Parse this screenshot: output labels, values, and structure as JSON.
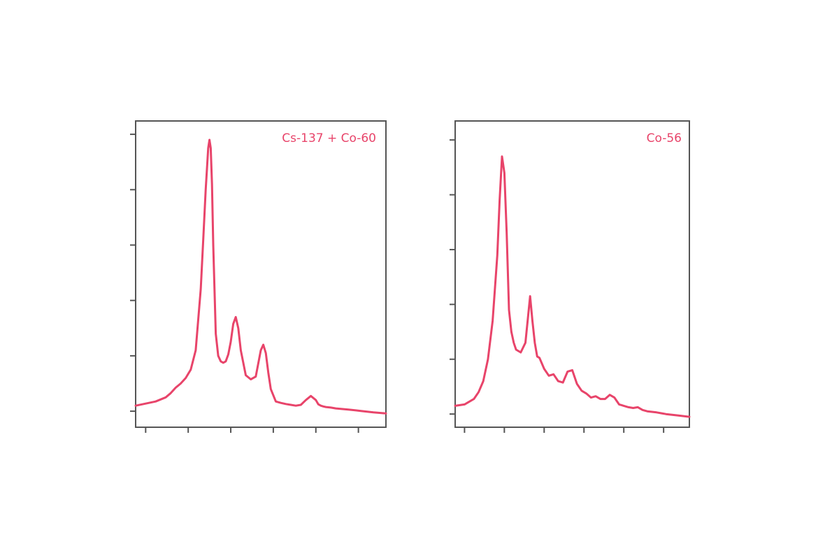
{
  "accent_color": "#e8446a",
  "chart_data": [
    {
      "type": "line",
      "title": "",
      "xlabel": "",
      "ylabel": "",
      "xlim": [
        0,
        100
      ],
      "ylim": [
        0,
        100
      ],
      "grid": false,
      "legend_position": "top-right",
      "x_ticks": [
        4,
        21,
        38,
        55,
        72,
        89
      ],
      "y_ticks": [
        2,
        22,
        42,
        62,
        82,
        102
      ],
      "series": [
        {
          "name": "Cs-137 + Co-60",
          "color": "#e8446a",
          "x": [
            0,
            8,
            12,
            14,
            16,
            18,
            20,
            22,
            24,
            26,
            27,
            28,
            29,
            29.5,
            30,
            30.5,
            31,
            32,
            33,
            34,
            35,
            36,
            37,
            38,
            39,
            40,
            41,
            42,
            44,
            46,
            48,
            50,
            51,
            52,
            53,
            54,
            56,
            58,
            60,
            62,
            64,
            66,
            68,
            70,
            72,
            73,
            74,
            75,
            76,
            78,
            80,
            85,
            90,
            95,
            100
          ],
          "y": [
            4,
            5.5,
            7,
            8.5,
            10.5,
            12,
            14,
            17,
            24,
            46,
            64,
            82,
            97,
            100,
            97,
            84,
            62,
            30,
            22,
            20,
            19.5,
            20,
            22.5,
            27,
            33.5,
            36,
            32,
            24,
            15,
            13.5,
            14.5,
            24,
            26,
            23,
            16,
            10,
            5.5,
            5,
            4.6,
            4.3,
            4,
            4.3,
            6,
            7.5,
            6,
            4.5,
            4,
            3.7,
            3.5,
            3.3,
            3,
            2.6,
            2.1,
            1.6,
            1.2
          ]
        },
        {
          "name": "Co-56",
          "color": "#e8446a",
          "x": [
            0,
            4,
            8,
            10,
            12,
            14,
            16,
            18,
            19,
            20,
            21,
            22,
            23,
            24,
            25,
            26,
            28,
            30,
            32,
            33,
            34,
            35,
            36,
            38,
            40,
            42,
            44,
            46,
            48,
            50,
            52,
            54,
            56,
            58,
            60,
            62,
            64,
            66,
            68,
            70,
            72,
            74,
            76,
            78,
            80,
            82,
            84,
            86,
            88,
            90,
            95,
            100
          ],
          "y": [
            5,
            5.5,
            7.5,
            10,
            14,
            22,
            36,
            60,
            80,
            96,
            90,
            68,
            40,
            32,
            28,
            25.5,
            24.5,
            28,
            45,
            36,
            28,
            23,
            22.5,
            18.5,
            16,
            16.5,
            14,
            13.5,
            17.5,
            18,
            13,
            10.5,
            9.5,
            8,
            8.5,
            7.5,
            7.5,
            9,
            8,
            5.5,
            5,
            4.5,
            4.2,
            4.5,
            3.5,
            3,
            2.8,
            2.6,
            2.3,
            2,
            1.5,
            1
          ]
        }
      ]
    }
  ]
}
